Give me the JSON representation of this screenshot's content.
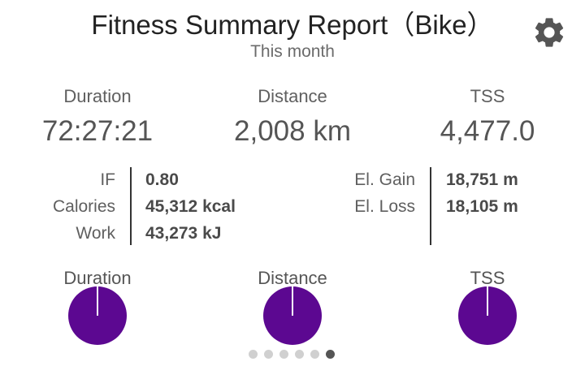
{
  "header": {
    "title": "Fitness Summary Report（Bike）",
    "subtitle": "This month",
    "settings_icon": "gear-icon"
  },
  "stats": [
    {
      "label": "Duration",
      "value": "72:27:21"
    },
    {
      "label": "Distance",
      "value": "2,008 km"
    },
    {
      "label": "TSS",
      "value": "4,477.0"
    }
  ],
  "details_left": [
    {
      "key": "IF",
      "value": "0.80"
    },
    {
      "key": "Calories",
      "value": "45,312 kcal"
    },
    {
      "key": "Work",
      "value": "43,273 kJ"
    }
  ],
  "details_right": [
    {
      "key": "El. Gain",
      "value": "18,751 m"
    },
    {
      "key": "El. Loss",
      "value": "18,105 m"
    }
  ],
  "mini_charts": [
    {
      "label": "Duration",
      "fraction": 1.0
    },
    {
      "label": "Distance",
      "fraction": 1.0
    },
    {
      "label": "TSS",
      "fraction": 1.0
    }
  ],
  "colors": {
    "pie_fill": "#5c0891",
    "pie_marker": "#ffffff"
  },
  "pager": {
    "count": 6,
    "active_index": 5
  }
}
